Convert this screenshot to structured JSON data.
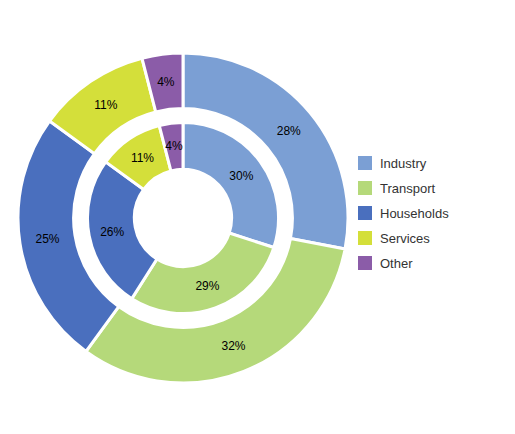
{
  "chart_data": {
    "type": "pie",
    "categories": [
      "Industry",
      "Transport",
      "Households",
      "Services",
      "Other"
    ],
    "series": [
      {
        "values": [
          28,
          32,
          25,
          11,
          4
        ],
        "value_labels": [
          "28%",
          "32%",
          "25%",
          "11%",
          "4%"
        ]
      },
      {
        "values": [
          30,
          29,
          26,
          11,
          4
        ],
        "value_labels": [
          "30%",
          "29%",
          "26%",
          "11%",
          "4%"
        ]
      }
    ],
    "colors": [
      "#7b9fd4",
      "#b5d97a",
      "#4a6fbe",
      "#d4df3a",
      "#8b5ca8"
    ],
    "legend": "right",
    "data_labels": true
  }
}
